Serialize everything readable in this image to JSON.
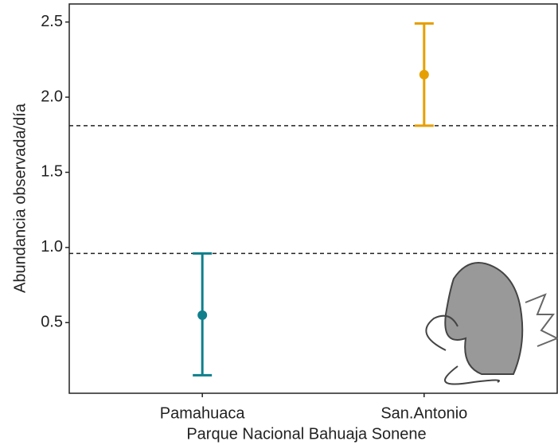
{
  "chart_data": {
    "type": "errorbar",
    "xlabel": "Parque Nacional Bahuaja Sonene",
    "ylabel": "Abundancia observada/día",
    "categories": [
      "Pamahuaca",
      "San.Antonio"
    ],
    "values": [
      0.55,
      2.15
    ],
    "lower": [
      0.15,
      1.81
    ],
    "upper": [
      0.96,
      2.49
    ],
    "colors": [
      "#0f7f8c",
      "#e69f00"
    ],
    "hlines": [
      1.81,
      0.96
    ],
    "ylim": [
      0.03,
      2.62
    ],
    "yticks": [
      0.5,
      {
        "value": 1.0,
        "label": "1.0"
      },
      1.5,
      {
        "value": 2.0,
        "label": "2.0"
      },
      2.5
    ],
    "grid": false
  }
}
